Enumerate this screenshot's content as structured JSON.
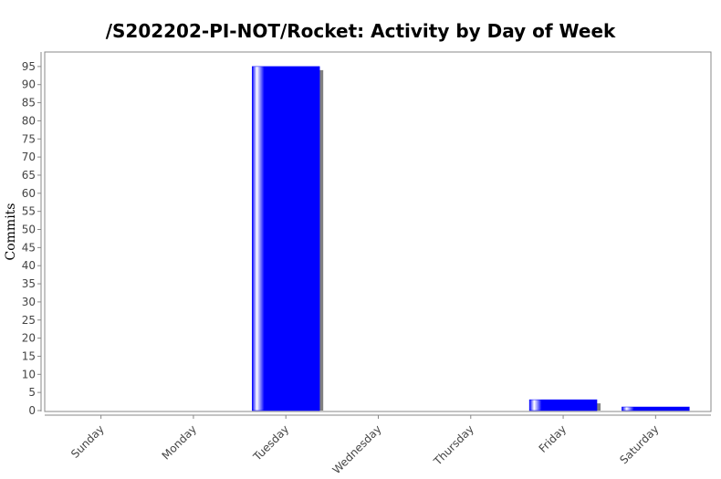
{
  "chart_data": {
    "type": "bar",
    "title": "/S202202-PI-NOT/Rocket: Activity by Day of Week",
    "xlabel": "",
    "ylabel": "Commits",
    "categories": [
      "Sunday",
      "Monday",
      "Tuesday",
      "Wednesday",
      "Thursday",
      "Friday",
      "Saturday"
    ],
    "values": [
      0,
      0,
      95,
      0,
      0,
      3,
      1
    ],
    "ylim": [
      0,
      99
    ],
    "yticks": [
      0,
      5,
      10,
      15,
      20,
      25,
      30,
      35,
      40,
      45,
      50,
      55,
      60,
      65,
      70,
      75,
      80,
      85,
      90,
      95
    ],
    "grid": false,
    "colors": {
      "bar": "#0000ff",
      "highlight": "#ffffff",
      "shadow": "#808080",
      "axis": "#888888"
    }
  }
}
